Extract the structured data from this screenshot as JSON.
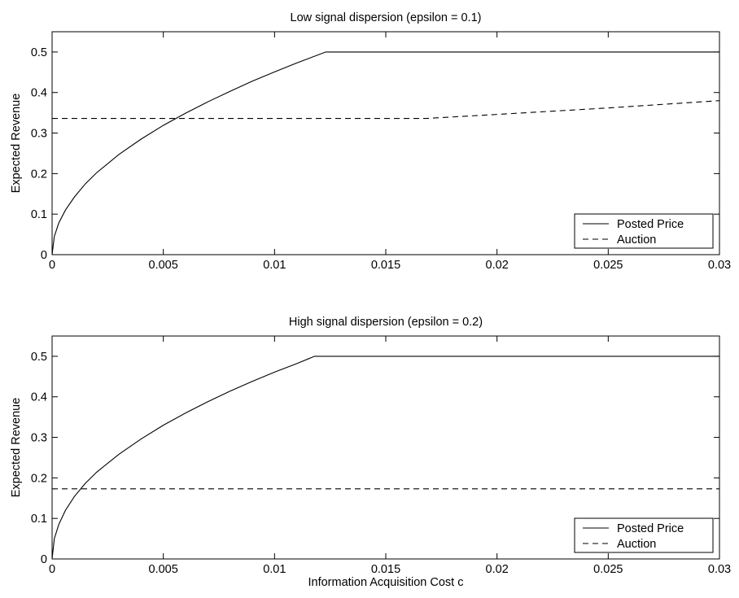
{
  "chart_data": [
    {
      "type": "line",
      "title": "Low signal dispersion (epsilon = 0.1)",
      "xlabel": "",
      "ylabel": "Expected Revenue",
      "xlim": [
        0,
        0.03
      ],
      "ylim": [
        0,
        0.55
      ],
      "xticks": [
        0,
        0.005,
        0.01,
        0.015,
        0.02,
        0.025,
        0.03
      ],
      "xtick_labels": [
        "0",
        "0.005",
        "0.01",
        "0.015",
        "0.02",
        "0.025",
        "0.03"
      ],
      "yticks": [
        0,
        0.1,
        0.2,
        0.3,
        0.4,
        0.5
      ],
      "ytick_labels": [
        "0",
        "0.1",
        "0.2",
        "0.3",
        "0.4",
        "0.5"
      ],
      "grid": false,
      "legend": "bottom-right",
      "series": [
        {
          "name": "Posted Price",
          "style": "solid",
          "x": [
            0,
            0.0001,
            0.0003,
            0.0006,
            0.001,
            0.0015,
            0.002,
            0.003,
            0.004,
            0.005,
            0.006,
            0.007,
            0.008,
            0.009,
            0.01,
            0.011,
            0.0123,
            0.015,
            0.02,
            0.025,
            0.03
          ],
          "y": [
            0,
            0.045,
            0.078,
            0.11,
            0.142,
            0.175,
            0.202,
            0.247,
            0.285,
            0.319,
            0.349,
            0.377,
            0.403,
            0.428,
            0.451,
            0.473,
            0.5,
            0.5,
            0.5,
            0.5,
            0.5
          ]
        },
        {
          "name": "Auction",
          "style": "dashed",
          "x": [
            0,
            0.005,
            0.01,
            0.015,
            0.0168,
            0.02,
            0.025,
            0.03
          ],
          "y": [
            0.336,
            0.336,
            0.336,
            0.336,
            0.336,
            0.346,
            0.362,
            0.38
          ]
        }
      ]
    },
    {
      "type": "line",
      "title": "High signal dispersion (epsilon = 0.2)",
      "xlabel": "Information Acquisition Cost c",
      "ylabel": "Expected Revenue",
      "xlim": [
        0,
        0.03
      ],
      "ylim": [
        0,
        0.55
      ],
      "xticks": [
        0,
        0.005,
        0.01,
        0.015,
        0.02,
        0.025,
        0.03
      ],
      "xtick_labels": [
        "0",
        "0.005",
        "0.01",
        "0.015",
        "0.02",
        "0.025",
        "0.03"
      ],
      "yticks": [
        0,
        0.1,
        0.2,
        0.3,
        0.4,
        0.5
      ],
      "ytick_labels": [
        "0",
        "0.1",
        "0.2",
        "0.3",
        "0.4",
        "0.5"
      ],
      "grid": false,
      "legend": "bottom-right",
      "series": [
        {
          "name": "Posted Price",
          "style": "solid",
          "x": [
            0,
            0.0001,
            0.0003,
            0.0006,
            0.001,
            0.0015,
            0.002,
            0.003,
            0.004,
            0.005,
            0.006,
            0.007,
            0.008,
            0.009,
            0.01,
            0.011,
            0.0118,
            0.015,
            0.02,
            0.025,
            0.03
          ],
          "y": [
            0,
            0.05,
            0.085,
            0.12,
            0.154,
            0.187,
            0.214,
            0.258,
            0.296,
            0.33,
            0.36,
            0.388,
            0.414,
            0.438,
            0.461,
            0.482,
            0.5,
            0.5,
            0.5,
            0.5,
            0.5
          ]
        },
        {
          "name": "Auction",
          "style": "dashed",
          "x": [
            0,
            0.03
          ],
          "y": [
            0.173,
            0.173
          ]
        }
      ]
    }
  ]
}
